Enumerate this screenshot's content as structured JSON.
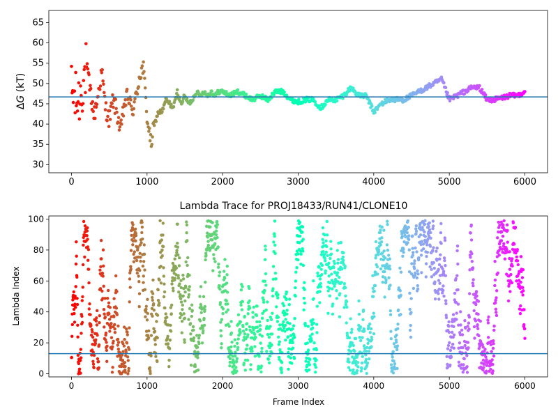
{
  "chart_data": [
    {
      "type": "scatter",
      "title": "",
      "xlabel": "",
      "ylabel": "ΔG (kT)",
      "ylabel_parts": {
        "delta": "Δ",
        "var": "G",
        "unit": " (kT)"
      },
      "xlim": [
        -300,
        6300
      ],
      "ylim": [
        28,
        68
      ],
      "xticks": [
        0,
        1000,
        2000,
        3000,
        4000,
        5000,
        6000
      ],
      "yticks": [
        30,
        35,
        40,
        45,
        50,
        55,
        60,
        65
      ],
      "hline": 46.7,
      "hline_color": "#1f77b4",
      "colormap": "rainbow (red at frame 0 → violet at frame 6000)",
      "n_frames": 6000,
      "series_profile": {
        "x": [
          0,
          50,
          100,
          150,
          200,
          250,
          300,
          350,
          400,
          450,
          500,
          550,
          600,
          650,
          700,
          750,
          800,
          850,
          900,
          950,
          1000,
          1050,
          1100,
          1150,
          1200,
          1250,
          1300,
          1350,
          1400,
          1450,
          1500,
          1550,
          1600,
          1650,
          1700,
          1750,
          1800,
          1850,
          1900,
          1950,
          2000,
          2100,
          2200,
          2300,
          2400,
          2500,
          2600,
          2700,
          2800,
          2900,
          3000,
          3100,
          3200,
          3300,
          3400,
          3500,
          3600,
          3700,
          3800,
          3900,
          4000,
          4100,
          4200,
          4300,
          4400,
          4500,
          4600,
          4700,
          4800,
          4900,
          5000,
          5100,
          5200,
          5300,
          5400,
          5500,
          5600,
          5700,
          5800,
          5900,
          6000
        ],
        "y": [
          48,
          46,
          46,
          50,
          54,
          48,
          42,
          47,
          53,
          44,
          41,
          46,
          43,
          38,
          45,
          47,
          43,
          46,
          52,
          54,
          42,
          35,
          40,
          43,
          43,
          46,
          45,
          44,
          48,
          45,
          47,
          45,
          46,
          48,
          47,
          48,
          47,
          48,
          47,
          48,
          48,
          47,
          48,
          47,
          46,
          47,
          46,
          48,
          48,
          46,
          45.5,
          46,
          46,
          44,
          46,
          46,
          47,
          49,
          47,
          47,
          43,
          45,
          46,
          46,
          46,
          47,
          48,
          49,
          50,
          51,
          46,
          47,
          48,
          49,
          49,
          46,
          46,
          46.5,
          47,
          47,
          48
        ]
      }
    },
    {
      "type": "scatter",
      "title": "Lambda Trace for PROJ18433/RUN41/CLONE10",
      "xlabel": "Frame Index",
      "ylabel": "Lambda Index",
      "xlim": [
        -300,
        6300
      ],
      "ylim": [
        -2,
        102
      ],
      "xticks": [
        0,
        1000,
        2000,
        3000,
        4000,
        5000,
        6000
      ],
      "yticks": [
        0,
        20,
        40,
        60,
        80,
        100
      ],
      "hline": 13,
      "hline_color": "#1f77b4",
      "colormap": "rainbow (red at frame 0 → violet at frame 6000)",
      "n_frames": 6000,
      "value_range": [
        0,
        99
      ]
    }
  ]
}
